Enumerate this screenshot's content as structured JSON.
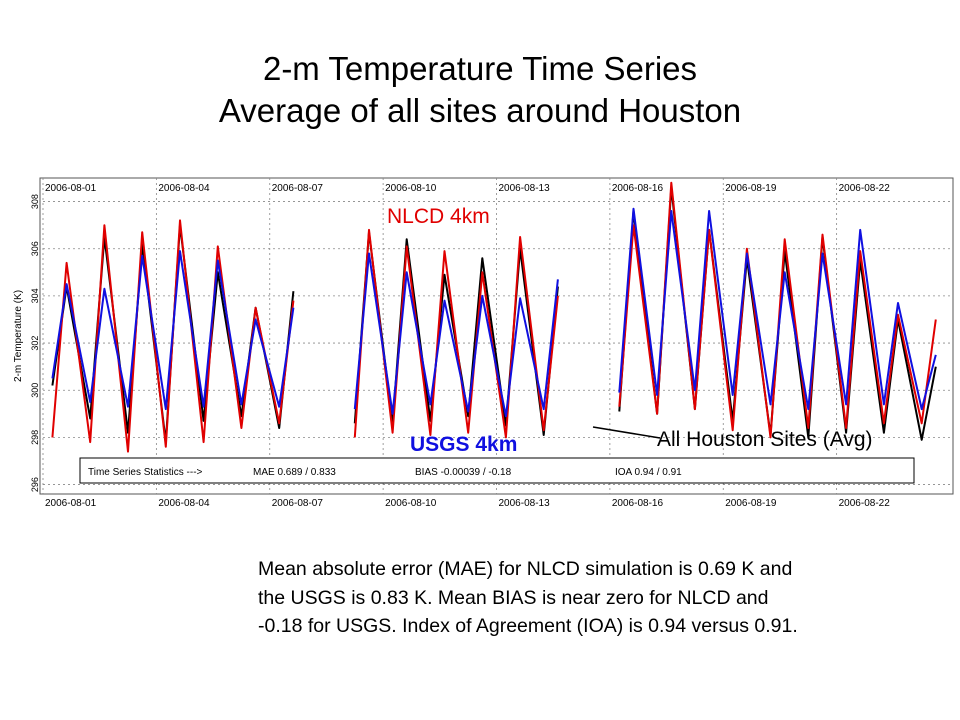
{
  "slide": {
    "title_line1": "2-m Temperature Time Series",
    "title_line2": "Average of all sites around Houston",
    "caption": "Mean absolute error (MAE) for NLCD simulation is 0.69 K and the USGS is 0.83 K. Mean BIAS is near zero for NLCD and -0.18 for USGS. Index of Agreement (IOA) is 0.94 versus 0.91."
  },
  "chart_data": {
    "type": "line",
    "ylabel": "2-m Temperature (K)",
    "yticks": [
      296,
      298,
      300,
      302,
      304,
      306,
      308
    ],
    "ylim": [
      295.6,
      309
    ],
    "xlim": [
      "2006-08-01",
      "2006-08-25"
    ],
    "date_ticks": [
      "2006-08-01",
      "2006-08-04",
      "2006-08-07",
      "2006-08-10",
      "2006-08-13",
      "2006-08-16",
      "2006-08-19",
      "2006-08-22"
    ],
    "grid": true,
    "annotations": {
      "nlcd": "NLCD 4km",
      "usgs": "USGS 4km",
      "obs": "All Houston Sites (Avg)"
    },
    "stats": {
      "label": "Time Series Statistics --->",
      "mae": "MAE  0.689 / 0.833",
      "bias": "BIAS  -0.00039 / -0.18",
      "ioa": "IOA  0.94 / 0.91"
    },
    "colors": {
      "obs": "#000000",
      "nlcd": "#e00000",
      "usgs": "#1010e0"
    },
    "days": [
      "2006-08-01",
      "2006-08-02",
      "2006-08-03",
      "2006-08-04",
      "2006-08-05",
      "2006-08-06",
      "2006-08-07",
      "2006-08-08",
      "2006-08-09",
      "2006-08-10",
      "2006-08-11",
      "2006-08-12",
      "2006-08-13",
      "2006-08-14",
      "2006-08-15",
      "2006-08-16",
      "2006-08-17",
      "2006-08-18",
      "2006-08-19",
      "2006-08-20",
      "2006-08-21",
      "2006-08-22",
      "2006-08-23",
      "2006-08-24"
    ],
    "series": [
      {
        "name": "All Houston Sites (Avg)",
        "key": "obs",
        "daily_max": [
          304.4,
          306.5,
          306.2,
          307.0,
          305.0,
          303.5,
          304.2,
          null,
          306.7,
          306.4,
          304.9,
          305.6,
          306.0,
          304.4,
          null,
          307.6,
          308.6,
          306.8,
          305.6,
          305.9,
          306.5,
          305.5,
          303.0,
          301.0
        ],
        "daily_min": [
          300.2,
          298.8,
          298.2,
          297.8,
          298.7,
          298.9,
          298.4,
          null,
          298.6,
          298.6,
          298.7,
          298.9,
          298.5,
          298.1,
          null,
          299.1,
          299.0,
          299.2,
          298.7,
          298.1,
          298.0,
          298.2,
          298.2,
          297.9
        ]
      },
      {
        "name": "NLCD 4km",
        "key": "nlcd",
        "daily_max": [
          305.4,
          307.0,
          306.7,
          307.2,
          306.1,
          303.5,
          303.8,
          null,
          306.8,
          306.1,
          305.9,
          305.0,
          306.5,
          304.0,
          null,
          307.0,
          308.8,
          306.8,
          306.0,
          306.4,
          306.6,
          305.9,
          303.2,
          303.0
        ],
        "daily_min": [
          298.0,
          297.8,
          297.4,
          297.6,
          297.8,
          298.4,
          298.6,
          null,
          298.0,
          298.2,
          298.1,
          298.2,
          298.0,
          298.3,
          null,
          299.3,
          299.0,
          299.2,
          298.3,
          298.0,
          298.4,
          298.4,
          298.6,
          298.6
        ]
      },
      {
        "name": "USGS 4km",
        "key": "usgs",
        "daily_max": [
          304.5,
          304.3,
          305.7,
          305.9,
          305.5,
          303.0,
          303.5,
          null,
          305.8,
          305.0,
          303.8,
          304.0,
          303.9,
          304.7,
          null,
          307.7,
          307.6,
          307.6,
          305.8,
          305.0,
          305.8,
          306.8,
          303.7,
          301.5
        ],
        "daily_min": [
          300.5,
          299.5,
          299.3,
          299.2,
          299.3,
          299.4,
          299.3,
          null,
          299.2,
          299.0,
          299.4,
          299.1,
          298.9,
          299.2,
          null,
          299.9,
          299.8,
          300.0,
          299.8,
          299.4,
          299.2,
          299.4,
          299.4,
          299.2
        ]
      }
    ]
  }
}
